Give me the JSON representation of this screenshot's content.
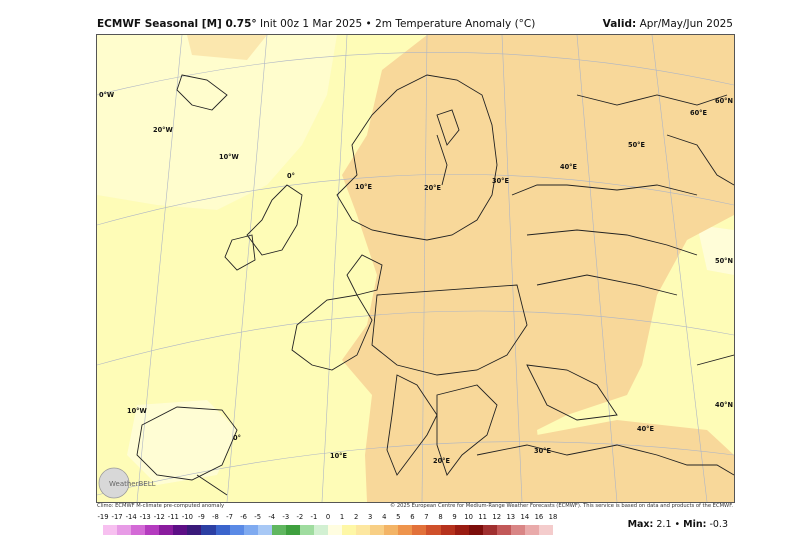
{
  "header": {
    "title_bold": "ECMWF Seasonal [M] 0.75°",
    "title_rest": " Init 00z 1 Mar 2025 • 2m Temperature Anomaly (°C)",
    "valid_label": "Valid:",
    "valid_value": " Apr/May/Jun 2025"
  },
  "credits": {
    "left": "Climo: ECMWF M-climate pre-computed anomaly",
    "right": "© 2025 European Centre for Medium-Range Weather Forecasts (ECMWF). This service is based on data and products of the ECMWF."
  },
  "logo": "WeatherBELL",
  "map_labels": {
    "lon_0w_top": "0°W",
    "lon_20w": "20°W",
    "lon_10w": "10°W",
    "lon_0": "0°",
    "lon_10e": "10°E",
    "lon_20e": "20°E",
    "lon_30e": "30°E",
    "lon_40e": "40°E",
    "lon_50e": "50°E",
    "lon_60e": "60°E",
    "lat_60n": "60°N",
    "lat_50n": "50°N",
    "lat_40n": "40°N",
    "lon_10w_bottom": "10°W",
    "lon_0_bottom": "0°",
    "lon_10e_bottom": "10°E",
    "lon_20e_bottom": "20°E",
    "lon_30e_bottom": "30°E",
    "lon_40e_bottom": "40°E"
  },
  "colorbar": {
    "labels": [
      "-19",
      "-17",
      "-14",
      "-13",
      "-12",
      "-11",
      "-10",
      "-9",
      "-8",
      "-7",
      "-6",
      "-5",
      "-4",
      "-3",
      "-2",
      "-1",
      "0",
      "1",
      "2",
      "3",
      "4",
      "5",
      "6",
      "7",
      "8",
      "9",
      "10",
      "11",
      "12",
      "13",
      "14",
      "16",
      "18"
    ],
    "colors": [
      "#f7c0f0",
      "#e79be6",
      "#d36ad6",
      "#b43bbf",
      "#8a1c9e",
      "#5d0f86",
      "#3a1a7a",
      "#2c3fa3",
      "#3b64cc",
      "#5a8ae6",
      "#7faaf0",
      "#a8c8f5",
      "#60b760",
      "#3ea03e",
      "#9fdc9f",
      "#d2f0d2",
      "#fffde0",
      "#fef7a6",
      "#fde7a0",
      "#f8cf85",
      "#f3b466",
      "#ee944c",
      "#e2713a",
      "#cf502b",
      "#b6321d",
      "#9a1c12",
      "#7c0e0b",
      "#a03030",
      "#c25858",
      "#d98585",
      "#e9aaaa",
      "#f4cccc"
    ]
  },
  "stats": {
    "max_label": "Max:",
    "max_value": " 2.1",
    "sep": " • ",
    "min_label": "Min:",
    "min_value": " -0.3"
  }
}
